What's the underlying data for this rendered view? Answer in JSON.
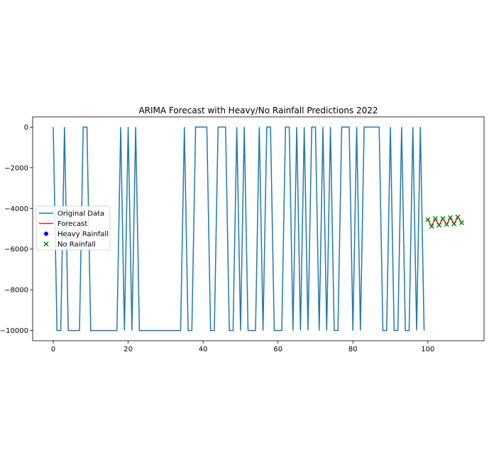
{
  "chart_data": {
    "type": "line",
    "title": "ARIMA Forecast with Heavy/No Rainfall Predictions 2022",
    "xlabel": "",
    "ylabel": "",
    "xlim": [
      -5.5,
      115
    ],
    "ylim": [
      -10500,
      500
    ],
    "x_ticks": [
      0,
      20,
      40,
      60,
      80,
      100
    ],
    "y_ticks": [
      0,
      -2000,
      -4000,
      -6000,
      -8000,
      -10000
    ],
    "grid": false,
    "legend": {
      "placement": "center-left",
      "entries": [
        {
          "label": "Original Data",
          "kind": "line",
          "color": "#1f77b4"
        },
        {
          "label": "Forecast",
          "kind": "line",
          "color": "#d62728"
        },
        {
          "label": "Heavy Rainfall",
          "kind": "dot",
          "color": "#0000ff"
        },
        {
          "label": "No Rainfall",
          "kind": "x",
          "color": "#008000"
        }
      ]
    },
    "series": [
      {
        "name": "Original Data",
        "color": "#1f77b4",
        "x_start": 0,
        "values": [
          0,
          -10000,
          -10000,
          0,
          -10000,
          -10000,
          -10000,
          -10000,
          0,
          0,
          -10000,
          -10000,
          -10000,
          -10000,
          -10000,
          -10000,
          -10000,
          -10000,
          0,
          -10000,
          0,
          -10000,
          0,
          -10000,
          -10000,
          -10000,
          -10000,
          -10000,
          -10000,
          -10000,
          -10000,
          -10000,
          -10000,
          -10000,
          -10000,
          0,
          -10000,
          -10000,
          0,
          0,
          0,
          0,
          -10000,
          -10000,
          0,
          0,
          0,
          -10000,
          -10000,
          0,
          -10000,
          0,
          -10000,
          -10000,
          -10000,
          0,
          -10000,
          0,
          0,
          -10000,
          -10000,
          -10000,
          0,
          0,
          -10000,
          0,
          -10000,
          0,
          -10000,
          0,
          0,
          -10000,
          0,
          -10000,
          0,
          -10000,
          -10000,
          0,
          0,
          0,
          -10000,
          0,
          -10000,
          0,
          0,
          0,
          0,
          0,
          -10000,
          -10000,
          0,
          -10000,
          -10000,
          0,
          -10000,
          -10000,
          0,
          -10000,
          0,
          -10000
        ]
      },
      {
        "name": "Forecast",
        "color": "#d62728",
        "x_start": 100,
        "values": [
          -4550,
          -4880,
          -4500,
          -4820,
          -4500,
          -4780,
          -4450,
          -4760,
          -4420,
          -4700
        ]
      },
      {
        "name": "No Rainfall",
        "color": "#008000",
        "marker": "x",
        "x_start": 100,
        "values": [
          -4550,
          -4880,
          -4500,
          -4820,
          -4500,
          -4780,
          -4450,
          -4760,
          -4420,
          -4700
        ]
      },
      {
        "name": "Heavy Rainfall",
        "color": "#0000ff",
        "marker": "dot",
        "x_start": 100,
        "values": []
      }
    ]
  }
}
